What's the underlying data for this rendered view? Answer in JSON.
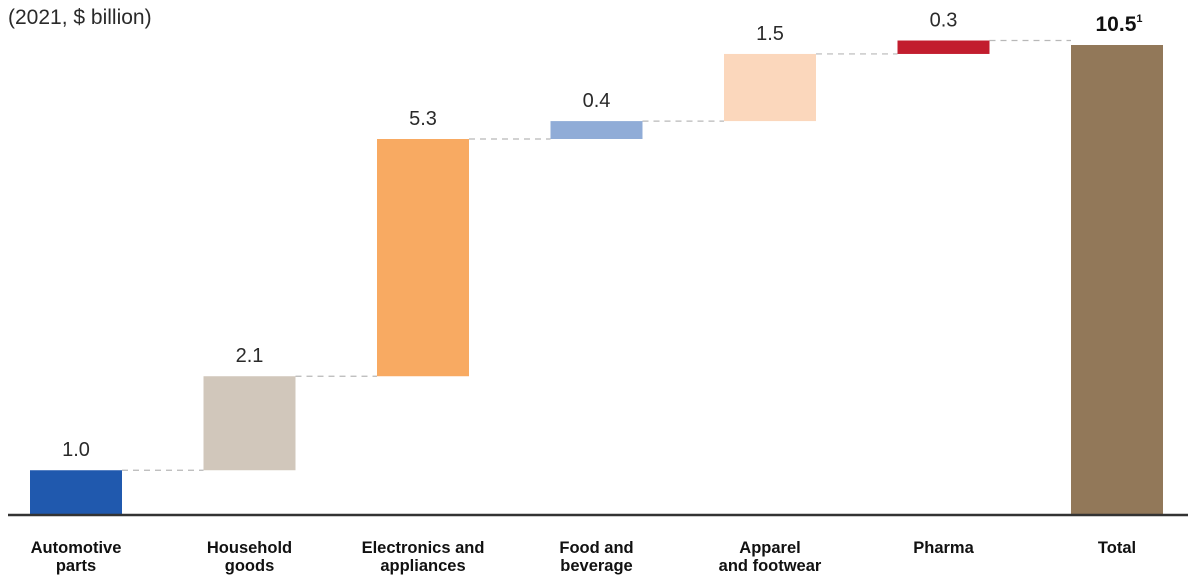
{
  "chart_data": {
    "type": "bar",
    "subtype": "waterfall",
    "subtitle": "(2021, $ billion)",
    "categories": [
      [
        "Automotive",
        "parts"
      ],
      [
        "Household",
        "goods"
      ],
      [
        "Electronics and",
        "appliances"
      ],
      [
        "Food and",
        "beverage"
      ],
      [
        "Apparel",
        "and footwear"
      ],
      [
        "Pharma"
      ],
      [
        "Total"
      ]
    ],
    "values": [
      1.0,
      2.1,
      5.3,
      0.4,
      1.5,
      0.3,
      10.5
    ],
    "value_labels": [
      "1.0",
      "2.1",
      "5.3",
      "0.4",
      "1.5",
      "0.3",
      "10.5"
    ],
    "total_footnote": "1",
    "colors": [
      "#2059ae",
      "#d1c7bb",
      "#f8aa62",
      "#90acd7",
      "#fbd7bc",
      "#c21d2e",
      "#927859"
    ],
    "ylim": [
      0,
      10.5
    ],
    "grid": false,
    "legend": "none"
  }
}
